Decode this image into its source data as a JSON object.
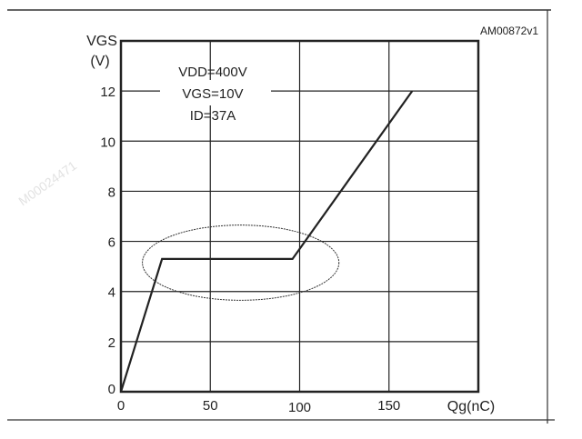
{
  "chart_data": {
    "type": "line",
    "figure_id": "AM00872v1",
    "ylabel": "VGS",
    "ylabel_unit": "(V)",
    "xlabel": "Qg(nC)",
    "xlim": [
      0,
      200
    ],
    "ylim": [
      0,
      14
    ],
    "x_ticks": [
      "0",
      "50",
      "100",
      "150"
    ],
    "y_ticks": [
      "0",
      "2",
      "4",
      "6",
      "8",
      "10",
      "12"
    ],
    "grid": true,
    "conditions": [
      "VDD=400V",
      "VGS=10V",
      "ID=37A"
    ],
    "series": [
      {
        "x": [
          0,
          23,
          96,
          163
        ],
        "y": [
          0,
          5.3,
          5.3,
          12
        ]
      }
    ],
    "highlight_ellipse": {
      "center": [
        67,
        5.15
      ],
      "radius_x": 55,
      "radius_y": 1.5
    },
    "watermark": "M00024471",
    "colors": {
      "line": "#222222",
      "grid": "#222222"
    }
  }
}
